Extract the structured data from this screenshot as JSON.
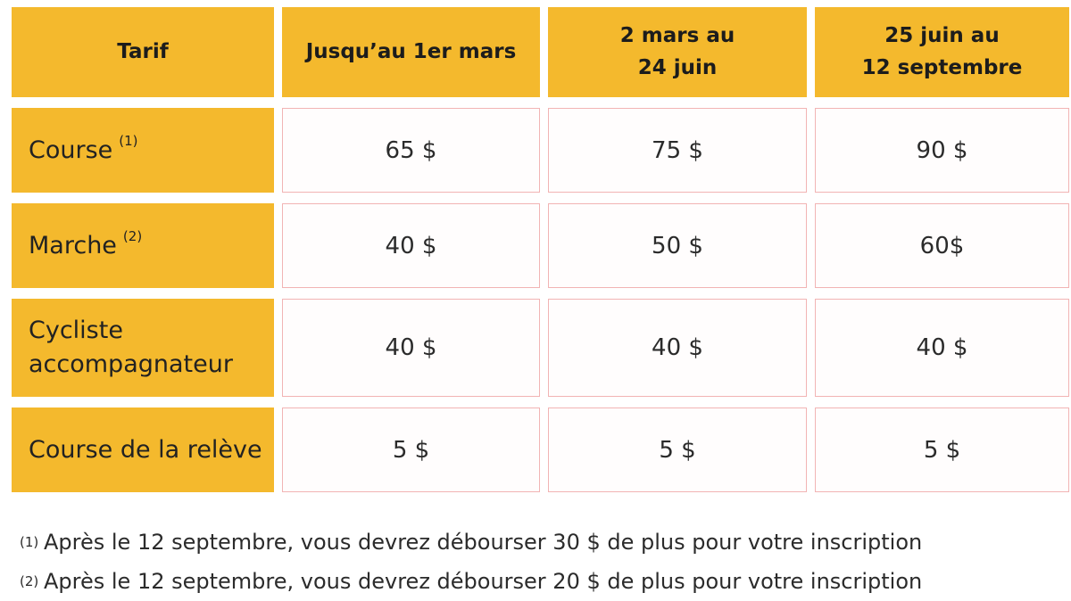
{
  "colors": {
    "header_bg": "#F4B92D",
    "cell_border": "#F2B4B4",
    "text": "#262626"
  },
  "table": {
    "columns": [
      "Tarif",
      "Jusqu’au 1er mars",
      "2 mars au\n24 juin",
      "25 juin au\n12 septembre"
    ],
    "rows": [
      {
        "label": "Course",
        "sup": "(1)",
        "values": [
          "65 $",
          "75 $",
          "90 $"
        ]
      },
      {
        "label": "Marche",
        "sup": "(2)",
        "values": [
          "40 $",
          "50 $",
          "60$"
        ]
      },
      {
        "label": "Cycliste accompagnateur",
        "sup": "",
        "values": [
          "40 $",
          "40 $",
          "40 $"
        ]
      },
      {
        "label": "Course de la relève",
        "sup": "",
        "values": [
          "5 $",
          "5 $",
          "5 $"
        ]
      }
    ]
  },
  "footnotes": [
    {
      "marker": "(1)",
      "text": "Après le 12 septembre, vous devrez débourser 30 $ de plus pour votre inscription"
    },
    {
      "marker": "(2)",
      "text": "Après le 12 septembre, vous devrez débourser 20 $ de plus pour votre inscription"
    }
  ]
}
